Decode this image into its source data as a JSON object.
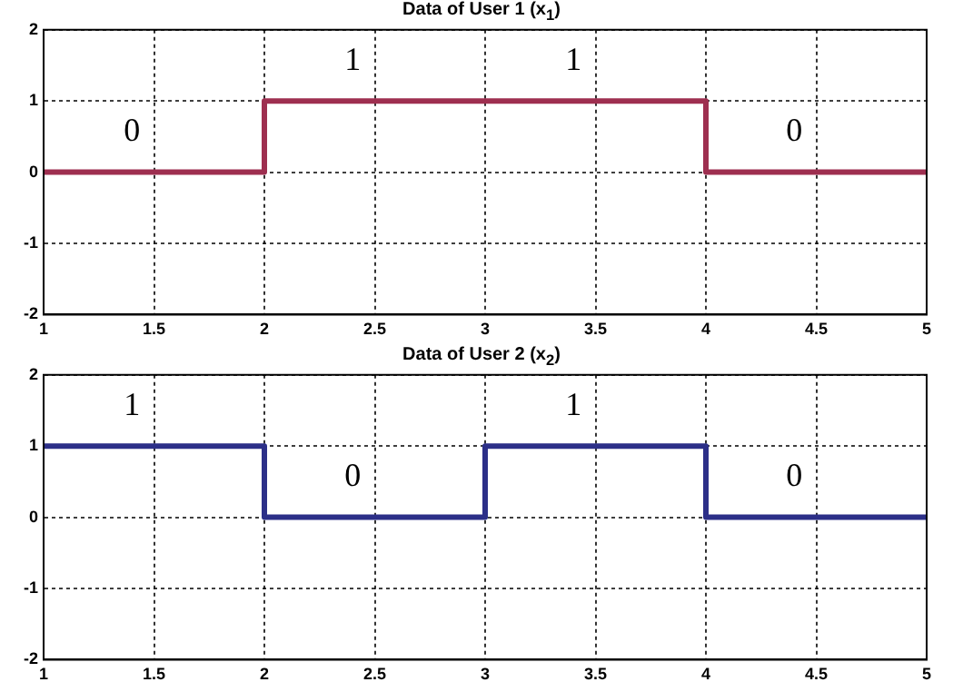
{
  "chart_data": [
    {
      "type": "step",
      "title": "Data of User 1 (x$_{1}$)",
      "x": [
        1,
        2,
        3,
        4,
        5
      ],
      "series": [
        {
          "color": "#9e2f50",
          "values": [
            0,
            1,
            1,
            0,
            0
          ]
        }
      ],
      "xlim": [
        1,
        5
      ],
      "xticks": [
        1,
        1.5,
        2,
        2.5,
        3,
        3.5,
        4,
        4.5,
        5
      ],
      "ylim": [
        -2,
        2
      ],
      "yticks": [
        -2,
        -1,
        0,
        1,
        2
      ],
      "grid": true,
      "legend": false,
      "annotations": [
        "0",
        "1",
        "1",
        "0"
      ]
    },
    {
      "type": "step",
      "title": "Data of User 2 (x$_{2}$)",
      "x": [
        1,
        2,
        3,
        4,
        5
      ],
      "series": [
        {
          "color": "#2c2f88",
          "values": [
            1,
            0,
            1,
            0,
            0
          ]
        }
      ],
      "xlim": [
        1,
        5
      ],
      "xticks": [
        1,
        1.5,
        2,
        2.5,
        3,
        3.5,
        4,
        4.5,
        5
      ],
      "ylim": [
        -2,
        2
      ],
      "yticks": [
        -2,
        -1,
        0,
        1,
        2
      ],
      "grid": true,
      "legend": false,
      "annotations": [
        "1",
        "0",
        "1",
        "0"
      ]
    }
  ]
}
